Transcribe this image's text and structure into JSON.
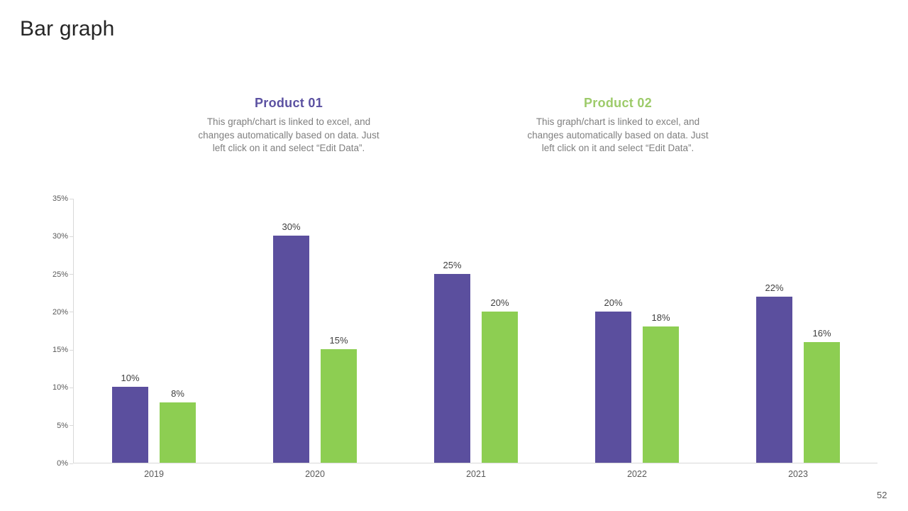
{
  "page": {
    "title": "Bar graph",
    "page_number": "52"
  },
  "products": [
    {
      "name": "Product 01",
      "color": "#5B51A1",
      "description_lines": [
        "This graph/chart is linked to excel, and",
        "changes automatically based on data. Just",
        "left click on it and select “Edit Data”."
      ]
    },
    {
      "name": "Product 02",
      "color": "#9DCB6A",
      "description_lines": [
        "This graph/chart is linked to excel, and",
        "changes automatically based on data. Just",
        "left click on it and select “Edit Data”."
      ]
    }
  ],
  "chart_data": {
    "type": "bar",
    "title": "",
    "categories": [
      "2019",
      "2020",
      "2021",
      "2022",
      "2023"
    ],
    "series": [
      {
        "name": "Product 01",
        "color": "#5B4F9E",
        "values": [
          10,
          30,
          25,
          20,
          22
        ]
      },
      {
        "name": "Product 02",
        "color": "#8DCE52",
        "values": [
          8,
          15,
          20,
          18,
          16
        ]
      }
    ],
    "value_suffix": "%",
    "y_ticks": [
      "0%",
      "5%",
      "10%",
      "15%",
      "20%",
      "25%",
      "30%",
      "35%"
    ],
    "ylim": [
      0,
      35
    ],
    "grid": false,
    "legend": "none",
    "data_labels": true,
    "axis_color": "#D9D9D9",
    "tick_label_color": "#595959",
    "data_label_color": "#404040"
  }
}
